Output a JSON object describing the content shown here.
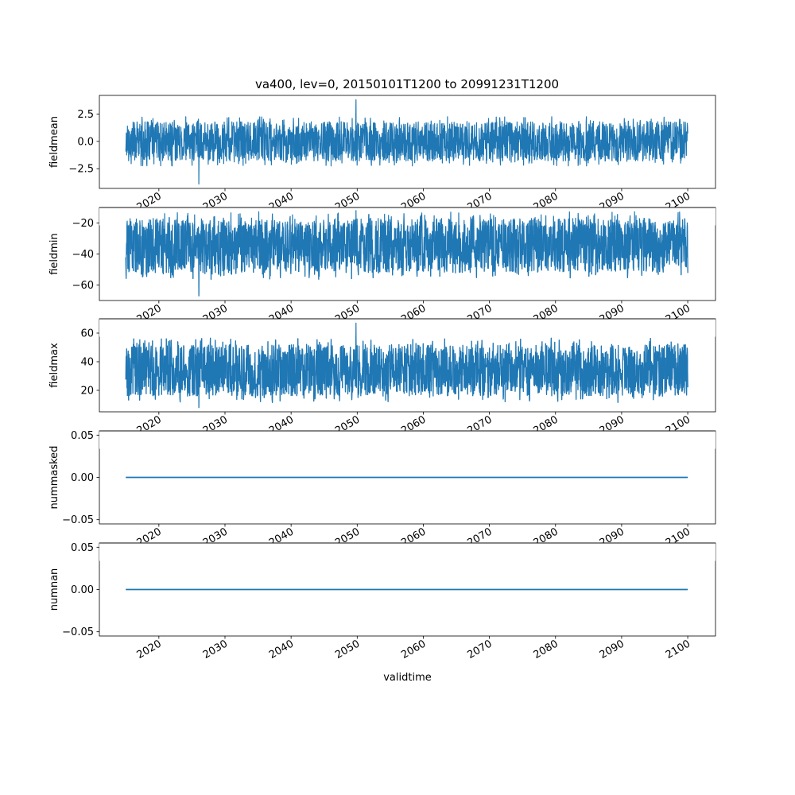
{
  "title": "va400, lev=0, 20150101T1200 to 20991231T1200",
  "line_color": "#1f77b4",
  "chart_data": [
    {
      "type": "line",
      "ylabel": "fieldmean",
      "xlabel": "",
      "xlim": [
        2011.0,
        2104.2
      ],
      "ylim": [
        -4.3,
        4.2
      ],
      "yticks": [
        -2.5,
        0.0,
        2.5
      ],
      "ytick_labels": [
        "−2.5",
        "0.0",
        "2.5"
      ],
      "xticks": [
        2020,
        2030,
        2040,
        2050,
        2060,
        2070,
        2080,
        2090,
        2100
      ],
      "xtick_labels": [
        "2020",
        "2030",
        "2040",
        "2050",
        "2060",
        "2070",
        "2080",
        "2090",
        "2100"
      ],
      "x_range": [
        2015.0,
        2100.0
      ],
      "band": {
        "low": -1.8,
        "high": 1.8
      },
      "extremes": {
        "min": -3.9,
        "max": 3.8
      },
      "series": [
        {
          "values_summary": "dense daily fluctuation around 0"
        }
      ]
    },
    {
      "type": "line",
      "ylabel": "fieldmin",
      "xlabel": "",
      "xlim": [
        2011.0,
        2104.2
      ],
      "ylim": [
        -70.0,
        -10.0
      ],
      "yticks": [
        -60,
        -40,
        -20
      ],
      "ytick_labels": [
        "−60",
        "−40",
        "−20"
      ],
      "xticks": [
        2020,
        2030,
        2040,
        2050,
        2060,
        2070,
        2080,
        2090,
        2100
      ],
      "xtick_labels": [
        "2020",
        "2030",
        "2040",
        "2050",
        "2060",
        "2070",
        "2080",
        "2090",
        "2100"
      ],
      "x_range": [
        2015.0,
        2100.0
      ],
      "band": {
        "low": -52.0,
        "high": -17.0
      },
      "extremes": {
        "min": -67.0,
        "max": -12.0
      },
      "series": [
        {
          "values_summary": "dense daily fluctuation between about -55 and -15"
        }
      ]
    },
    {
      "type": "line",
      "ylabel": "fieldmax",
      "xlabel": "",
      "xlim": [
        2011.0,
        2104.2
      ],
      "ylim": [
        5.0,
        70.0
      ],
      "yticks": [
        20,
        40,
        60
      ],
      "ytick_labels": [
        "20",
        "40",
        "60"
      ],
      "xticks": [
        2020,
        2030,
        2040,
        2050,
        2060,
        2070,
        2080,
        2090,
        2100
      ],
      "xtick_labels": [
        "2020",
        "2030",
        "2040",
        "2050",
        "2060",
        "2070",
        "2080",
        "2090",
        "2100"
      ],
      "x_range": [
        2015.0,
        2100.0
      ],
      "band": {
        "low": 16.0,
        "high": 52.0
      },
      "extremes": {
        "min": 8.0,
        "max": 67.0
      },
      "series": [
        {
          "values_summary": "dense daily fluctuation between about 15 and 55"
        }
      ]
    },
    {
      "type": "line",
      "ylabel": "nummasked",
      "xlabel": "",
      "xlim": [
        2011.0,
        2104.2
      ],
      "ylim": [
        -0.055,
        0.055
      ],
      "yticks": [
        -0.05,
        0.0,
        0.05
      ],
      "ytick_labels": [
        "−0.05",
        "0.00",
        "0.05"
      ],
      "xticks": [
        2020,
        2030,
        2040,
        2050,
        2060,
        2070,
        2080,
        2090,
        2100
      ],
      "xtick_labels": [
        "2020",
        "2030",
        "2040",
        "2050",
        "2060",
        "2070",
        "2080",
        "2090",
        "2100"
      ],
      "x_range": [
        2015.0,
        2100.0
      ],
      "series": [
        {
          "x": [
            2015.0,
            2100.0
          ],
          "values": [
            0.0,
            0.0
          ]
        }
      ]
    },
    {
      "type": "line",
      "ylabel": "numnan",
      "xlabel": "validtime",
      "xlim": [
        2011.0,
        2104.2
      ],
      "ylim": [
        -0.055,
        0.055
      ],
      "yticks": [
        -0.05,
        0.0,
        0.05
      ],
      "ytick_labels": [
        "−0.05",
        "0.00",
        "0.05"
      ],
      "xticks": [
        2020,
        2030,
        2040,
        2050,
        2060,
        2070,
        2080,
        2090,
        2100
      ],
      "xtick_labels": [
        "2020",
        "2030",
        "2040",
        "2050",
        "2060",
        "2070",
        "2080",
        "2090",
        "2100"
      ],
      "x_range": [
        2015.0,
        2100.0
      ],
      "series": [
        {
          "x": [
            2015.0,
            2100.0
          ],
          "values": [
            0.0,
            0.0
          ]
        }
      ]
    }
  ]
}
